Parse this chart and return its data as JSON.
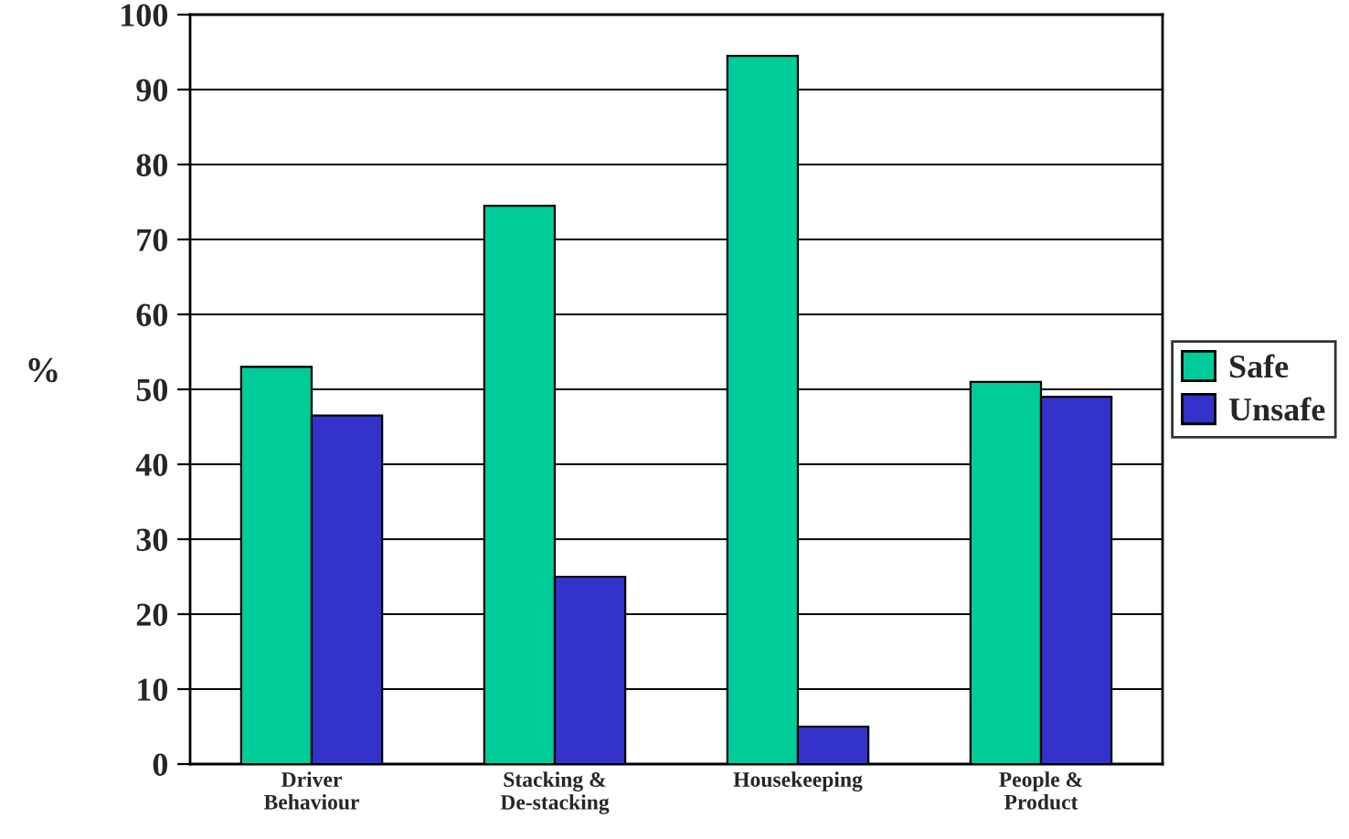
{
  "chart_data": {
    "type": "bar",
    "ylabel": "%",
    "categories": [
      "Driver\nBehaviour",
      "Stacking &\nDe-stacking",
      "Housekeeping",
      "People &\nProduct"
    ],
    "series": [
      {
        "name": "Safe",
        "color": "#00cc99",
        "values": [
          53,
          74.5,
          94.5,
          51
        ]
      },
      {
        "name": "Unsafe",
        "color": "#3333cc",
        "values": [
          46.5,
          25,
          5,
          49
        ]
      }
    ],
    "ylim": [
      0,
      100
    ],
    "yticks": [
      0,
      10,
      20,
      30,
      40,
      50,
      60,
      70,
      80,
      90,
      100
    ],
    "grid": "y",
    "legend": "right"
  }
}
